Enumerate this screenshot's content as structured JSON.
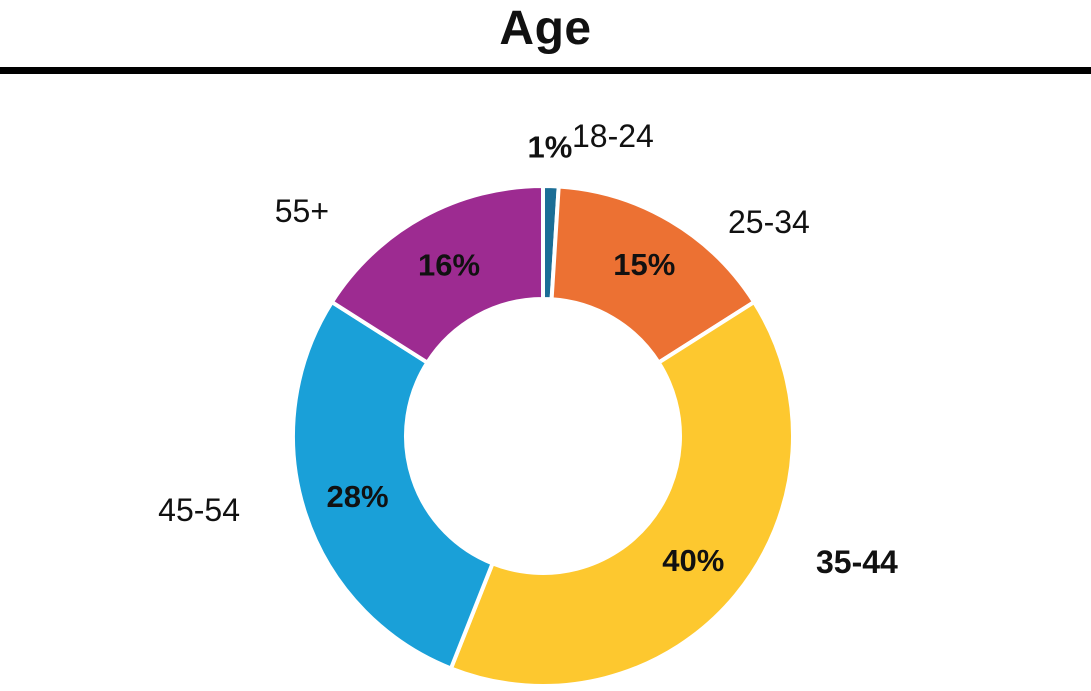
{
  "chart_data": {
    "type": "pie",
    "title": "Age",
    "donut": true,
    "legend": "none",
    "categories": [
      "18-24",
      "25-34",
      "35-44",
      "45-54",
      "55+"
    ],
    "values": [
      1,
      15,
      40,
      28,
      16
    ],
    "value_labels": [
      "1%",
      "15%",
      "40%",
      "28%",
      "16%"
    ],
    "colors": [
      "#1c6e96",
      "#ec7133",
      "#fdc82f",
      "#1aa0d8",
      "#9d2b91"
    ],
    "label_bold": [
      false,
      false,
      true,
      false,
      false
    ]
  }
}
